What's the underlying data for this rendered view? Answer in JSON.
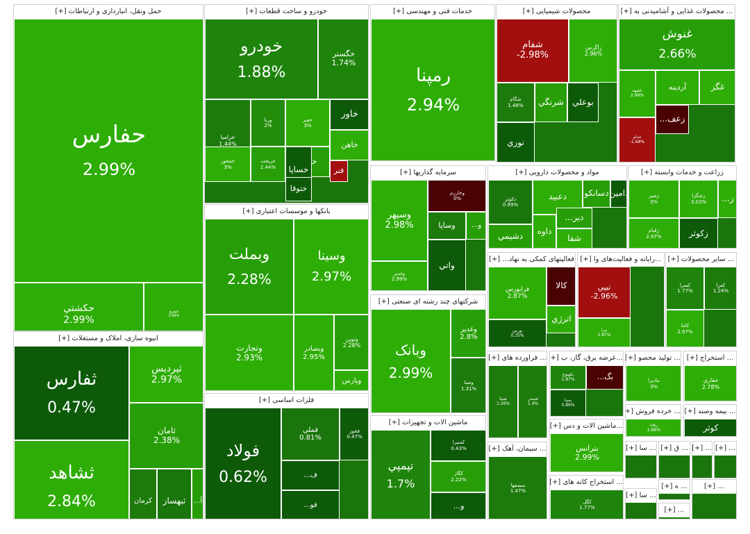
{
  "chart_data": {
    "type": "treemap",
    "title": "",
    "sectors": [
      {
        "name": "حمل ونقل، انبارداری و ارتباطات",
        "expand": "[+]",
        "tiles": [
          {
            "symbol": "حفارس",
            "change": "2.99%",
            "color": "#2ead07"
          },
          {
            "symbol": "حکشتي",
            "change": "2.99%",
            "color": "#2ead07"
          },
          {
            "symbol": "حپترو",
            "change": "2.99%",
            "color": "#2ead07"
          }
        ]
      },
      {
        "name": "انبوه سازی، املاک و مستغلات",
        "expand": "[+]",
        "tiles": [
          {
            "symbol": "ثفارس",
            "change": "0.47%",
            "color": "#0d5a09"
          },
          {
            "symbol": "ثپرديس",
            "change": "2.97%",
            "color": "#2ead07"
          },
          {
            "symbol": "ثامان",
            "change": "2.38%",
            "color": "#279e08"
          },
          {
            "symbol": "ثشاهد",
            "change": "2.84%",
            "color": "#2ead07"
          },
          {
            "symbol": "کرمان",
            "change": "",
            "color": "#1d7b0c"
          },
          {
            "symbol": "ثبهساز",
            "change": "",
            "color": "#1a750c"
          },
          {
            "symbol": "آ...",
            "change": "",
            "color": "#279e08"
          }
        ]
      },
      {
        "name": "خودرو و ساخت قطعات",
        "expand": "[+]",
        "tiles": [
          {
            "symbol": "خودرو",
            "change": "1.88%",
            "color": "#1e840b"
          },
          {
            "symbol": "خگستر",
            "change": "1.74%",
            "color": "#1e840b"
          },
          {
            "symbol": "خزاميا",
            "change": "1.44%",
            "color": "#1d7b0c"
          },
          {
            "symbol": "ورنا",
            "change": "2%",
            "color": "#238d0a"
          },
          {
            "symbol": "خفنر",
            "change": "3%",
            "color": "#2ead07"
          },
          {
            "symbol": "خاور",
            "change": "",
            "color": "#0d5a09"
          },
          {
            "symbol": "خمحور",
            "change": "3%",
            "color": "#2ead07"
          },
          {
            "symbol": "خاهن",
            "change": "",
            "color": "#2ead07"
          },
          {
            "symbol": "خبه...",
            "change": "",
            "color": "#279e08"
          },
          {
            "symbol": "خساپا",
            "change": "",
            "color": "#0d5a09"
          },
          {
            "symbol": "خريخت",
            "change": "2.44%",
            "color": "#279e08"
          },
          {
            "symbol": "فنر",
            "change": "",
            "color": "#a10f0f"
          },
          {
            "symbol": "ختوقا",
            "change": "",
            "color": "#0d5a09"
          }
        ]
      },
      {
        "name": "بانکها و موسسات اعتباری",
        "expand": "[+]",
        "tiles": [
          {
            "symbol": "وبملت",
            "change": "2.28%",
            "color": "#279e08"
          },
          {
            "symbol": "وسينا",
            "change": "2.97%",
            "color": "#2ead07"
          },
          {
            "symbol": "وتجارت",
            "change": "2.93%",
            "color": "#2ead07"
          },
          {
            "symbol": "وبصادر",
            "change": "2.95%",
            "color": "#2ead07"
          },
          {
            "symbol": "وتوين",
            "change": "2.28%",
            "color": "#279e08"
          },
          {
            "symbol": "وپارس",
            "change": "",
            "color": "#2ead07"
          }
        ]
      },
      {
        "name": "فلزات اساسی",
        "expand": "[+]",
        "tiles": [
          {
            "symbol": "فولاد",
            "change": "0.62%",
            "color": "#0d5a09"
          },
          {
            "symbol": "فملي",
            "change": "0.81%",
            "color": "#1a750c"
          },
          {
            "symbol": "فخوز",
            "change": "0.47%",
            "color": "#0d5a09"
          },
          {
            "symbol": "ف...",
            "change": "",
            "color": "#0d5a09"
          },
          {
            "symbol": "فو...",
            "change": "",
            "color": "#0d5a09"
          }
        ]
      },
      {
        "name": "خدمات فنی و مهندسی",
        "expand": "[+]",
        "tiles": [
          {
            "symbol": "رمپنا",
            "change": "2.94%",
            "color": "#2ead07"
          }
        ]
      },
      {
        "name": "سرمایه گذاریها",
        "expand": "[+]",
        "tiles": [
          {
            "symbol": "وسپهر",
            "change": "2.98%",
            "color": "#2ead07"
          },
          {
            "symbol": "وخارزم",
            "change": "0%",
            "color": "#4a0303"
          },
          {
            "symbol": "وساپا",
            "change": "",
            "color": "#1d7b0c"
          },
          {
            "symbol": "و...",
            "change": "",
            "color": "#279e08"
          },
          {
            "symbol": "وغدير",
            "change": "2.99%",
            "color": "#2ead07"
          },
          {
            "symbol": "واتي",
            "change": "",
            "color": "#0d5a09"
          }
        ]
      },
      {
        "name": "شرکتهای چند رشته ای صنعتی",
        "expand": "[+]",
        "tiles": [
          {
            "symbol": "وبانک",
            "change": "2.99%",
            "color": "#2ead07"
          },
          {
            "symbol": "وغدير",
            "change": "2.8%",
            "color": "#279e08"
          },
          {
            "symbol": "وصنا",
            "change": "1.31%",
            "color": "#1d7b0c"
          }
        ]
      },
      {
        "name": "ماشین الات و تجهیزات",
        "expand": "[+]",
        "tiles": [
          {
            "symbol": "تپمپي",
            "change": "1.7%",
            "color": "#1e840b"
          },
          {
            "symbol": "کمنيرا",
            "change": "0.43%",
            "color": "#0d5a09"
          },
          {
            "symbol": "کگاز",
            "change": "2.22%",
            "color": "#279e08"
          },
          {
            "symbol": "و...",
            "change": "",
            "color": "#0d5a09"
          }
        ]
      },
      {
        "name": "محصولات شیمیایی",
        "expand": "[+]",
        "tiles": [
          {
            "symbol": "شفام",
            "change": "-2.98%",
            "color": "#a10f0f"
          },
          {
            "symbol": "زاگرس",
            "change": "2.96%",
            "color": "#2ead07"
          },
          {
            "symbol": "شگام",
            "change": "1.48%",
            "color": "#1d7b0c"
          },
          {
            "symbol": "شرنگي",
            "change": "",
            "color": "#279e08"
          },
          {
            "symbol": "بوعلي",
            "change": "",
            "color": "#0d5a09"
          },
          {
            "symbol": "نوري",
            "change": "",
            "color": "#0d5a09"
          }
        ]
      },
      {
        "name": "... محصولات غذایی و آشامیدنی به",
        "expand": "[+]",
        "tiles": [
          {
            "symbol": "غنوش",
            "change": "2.66%",
            "color": "#279e08"
          },
          {
            "symbol": "غشهد",
            "change": "2.99%",
            "color": "#2ead07"
          },
          {
            "symbol": "آردينه",
            "change": "",
            "color": "#2ead07"
          },
          {
            "symbol": "غگز",
            "change": "",
            "color": "#2ead07"
          },
          {
            "symbol": "زعف...",
            "change": "",
            "color": "#4a0303"
          },
          {
            "symbol": "غدام",
            "change": "-1.68%",
            "color": "#a10f0f"
          }
        ]
      },
      {
        "name": "مواد و محصولات دارویی",
        "expand": "[+]",
        "tiles": [
          {
            "symbol": "دکوثر",
            "change": "0.99%",
            "color": "#1a750c"
          },
          {
            "symbol": "دعبيد",
            "change": "",
            "color": "#2ead07"
          },
          {
            "symbol": "دسانکو",
            "change": "",
            "color": "#279e08"
          },
          {
            "symbol": "دامين",
            "change": "",
            "color": "#0d5a09"
          },
          {
            "symbol": "دشيمي",
            "change": "",
            "color": "#279e08"
          },
          {
            "symbol": "داوه",
            "change": "",
            "color": "#2ead07"
          },
          {
            "symbol": "دير...",
            "change": "",
            "color": "#279e08"
          },
          {
            "symbol": "شفا",
            "change": "",
            "color": "#2ead07"
          }
        ]
      },
      {
        "name": "زراعت و خدمات وابسته",
        "expand": "[+]",
        "tiles": [
          {
            "symbol": "زشير",
            "change": "3%",
            "color": "#2ead07"
          },
          {
            "symbol": "زشگزا",
            "change": "3.03%",
            "color": "#2ead07"
          },
          {
            "symbol": "ز...",
            "change": "",
            "color": "#2ead07"
          },
          {
            "symbol": "زقيام",
            "change": "2.97%",
            "color": "#2ead07"
          },
          {
            "symbol": "زکوثر",
            "change": "",
            "color": "#0d5a09"
          }
        ]
      },
      {
        "name": "فعالیتهای کمکی به نهاد...",
        "expand": "[+]",
        "tiles": [
          {
            "symbol": "فرابورس",
            "change": "2.87%",
            "color": "#2ead07"
          },
          {
            "symbol": "کالا",
            "change": "",
            "color": "#4a0303"
          },
          {
            "symbol": "اترژي",
            "change": "",
            "color": "#2ead07"
          },
          {
            "symbol": "بورس",
            "change": "0.35%",
            "color": "#0d5a09"
          }
        ]
      },
      {
        "name": "...رایانه و فعالیت‌های وا",
        "expand": "[+]",
        "tiles": [
          {
            "symbol": "تيپي",
            "change": "-2.96%",
            "color": "#a10f0f"
          },
          {
            "symbol": "مرا",
            "change": "2.87%",
            "color": "#2ead07"
          }
        ]
      },
      {
        "name": "... سایر محصولات",
        "expand": "[+]",
        "tiles": [
          {
            "symbol": "کسرا",
            "change": "1.77%",
            "color": "#1e840b"
          },
          {
            "symbol": "کفرا",
            "change": "1.24%",
            "color": "#1d7b0c"
          },
          {
            "symbol": "کاما",
            "change": "2.97%",
            "color": "#2ead07"
          }
        ]
      },
      {
        "name": "... فراورده های",
        "expand": "[+]",
        "tiles": [
          {
            "symbol": "شپنا",
            "change": "1.26%",
            "color": "#1d7b0c"
          },
          {
            "symbol": "شبندر",
            "change": "1.4%",
            "color": "#1d7b0c"
          }
        ]
      },
      {
        "name": "...عرضه برق، گاز، ب",
        "expand": "[+]",
        "tiles": [
          {
            "symbol": "بکهنوج",
            "change": "1.87%",
            "color": "#1e840b"
          },
          {
            "symbol": "بگ...",
            "change": "",
            "color": "#4a0303"
          },
          {
            "symbol": "بمپنا",
            "change": "0.86%",
            "color": "#0d5a09"
          }
        ]
      },
      {
        "name": "... تولید محصو",
        "expand": "[+]",
        "tiles": [
          {
            "symbol": "ماديرا",
            "change": "3%",
            "color": "#2ead07"
          }
        ]
      },
      {
        "name": "... استخراج",
        "expand": "[+]",
        "tiles": [
          {
            "symbol": "حفاري",
            "change": "2.78%",
            "color": "#2ead07"
          }
        ]
      },
      {
        "name": "... سیمان، آهک",
        "expand": "[+]",
        "tiles": [
          {
            "symbol": "سصفها",
            "change": "1.47%",
            "color": "#1d7b0c"
          }
        ]
      },
      {
        "name": "...ماشین الات و دس",
        "expand": "[+]",
        "tiles": [
          {
            "symbol": "بترانس",
            "change": "2.99%",
            "color": "#2ead07"
          }
        ]
      },
      {
        "name": "... خرده فروش",
        "expand": "[+]",
        "tiles": [
          {
            "symbol": "رفاه",
            "change": "2.86%",
            "color": "#2ead07"
          }
        ]
      },
      {
        "name": "... بیمه وصند",
        "expand": "[+]",
        "tiles": [
          {
            "symbol": "کوثر",
            "change": "",
            "color": "#0d5a09"
          }
        ]
      },
      {
        "name": "... استخراج کانه های",
        "expand": "[+]",
        "tiles": [
          {
            "symbol": "کگل",
            "change": "1.77%",
            "color": "#1e840b"
          }
        ]
      },
      {
        "name": "... سا",
        "expand": "[+]",
        "tiles": []
      },
      {
        "name": "... ق",
        "expand": "[+]",
        "tiles": []
      },
      {
        "name": "...",
        "expand": "[+]",
        "tiles": []
      },
      {
        "name": "...",
        "expand": "[+]",
        "tiles": []
      },
      {
        "name": "... سا",
        "expand": "[+]",
        "tiles": []
      },
      {
        "name": "... ه",
        "expand": "[+]",
        "tiles": []
      },
      {
        "name": "...",
        "expand": "[+]",
        "tiles": []
      },
      {
        "name": "...",
        "expand": "[+]",
        "tiles": []
      }
    ]
  }
}
